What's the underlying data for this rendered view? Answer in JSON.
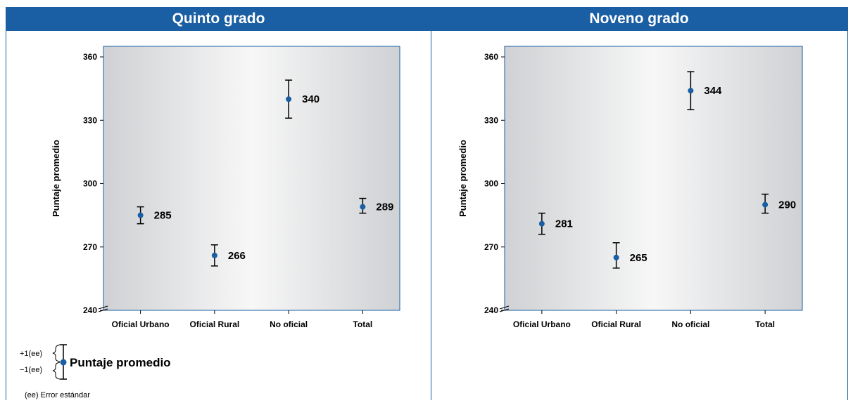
{
  "chart_data": [
    {
      "type": "scatter",
      "title": "Quinto grado",
      "xlabel": "",
      "ylabel": "Puntaje promedio",
      "categories": [
        "Oficial Urbano",
        "Oficial Rural",
        "No oficial",
        "Total"
      ],
      "values": [
        285,
        266,
        340,
        289
      ],
      "error_low": [
        281,
        261,
        331,
        286
      ],
      "error_high": [
        289,
        271,
        349,
        293
      ],
      "ylim": [
        240,
        365
      ],
      "yticks": [
        240,
        270,
        300,
        330,
        360
      ],
      "marker_color": "#1a5ea3"
    },
    {
      "type": "scatter",
      "title": "Noveno grado",
      "xlabel": "",
      "ylabel": "Puntaje promedio",
      "categories": [
        "Oficial Urbano",
        "Oficial Rural",
        "No oficial",
        "Total"
      ],
      "values": [
        281,
        265,
        344,
        290
      ],
      "error_low": [
        276,
        260,
        335,
        286
      ],
      "error_high": [
        286,
        272,
        353,
        295
      ],
      "ylim": [
        240,
        365
      ],
      "yticks": [
        240,
        270,
        300,
        330,
        360
      ],
      "marker_color": "#1a5ea3"
    }
  ],
  "legend": {
    "plus_label": "+1(ee)",
    "minus_label": "−1(ee)",
    "series_label": "Puntaje promedio",
    "note": "(ee) Error estándar"
  },
  "colors": {
    "header_bg": "#1a5ea3",
    "plot_light": "#f7f7f7",
    "plot_dark": "#cfd1d4"
  }
}
